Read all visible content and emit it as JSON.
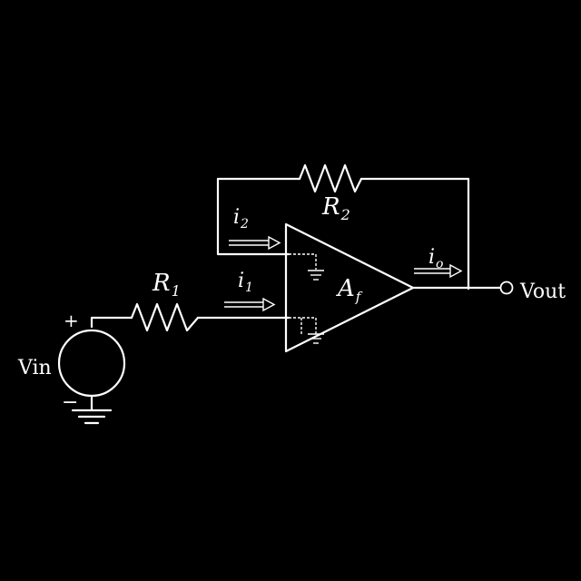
{
  "labels": {
    "r1": "R",
    "r1_sub": "1",
    "r2": "R",
    "r2_sub": "2",
    "i1": "i",
    "i1_sub": "1",
    "i2": "i",
    "i2_sub": "2",
    "io": "i",
    "io_sub": "o",
    "amp": "A",
    "amp_sub": "f",
    "vin": "Vin",
    "vout": "Vout",
    "plus": "+",
    "minus": "−"
  }
}
